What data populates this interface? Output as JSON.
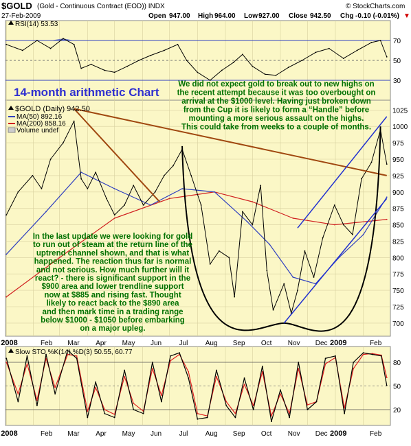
{
  "header": {
    "symbol": "$GOLD",
    "description": "(Gold - Continuous Contract (EOD)) INDX",
    "watermark": "© StockCharts.com",
    "date": "27-Feb-2009",
    "open_label": "Open",
    "open": "947.00",
    "high_label": "High",
    "high": "964.00",
    "low_label": "Low",
    "low": "927.00",
    "close_label": "Close",
    "close": "942.50",
    "chg_label": "Chg",
    "chg": "-0.10 (-0.01%)",
    "chg_arrow": "▼"
  },
  "annotations": {
    "chart_title": "14-month arithmetic Chart",
    "top_note": [
      "We did not expect gold to break out to new highs on",
      "the recent attempt because it was too overbought on",
      "arrival at the $1000 level. Having just broken down",
      "from the Cup it is likely to form a “Handle” before",
      "mounting a more serious assault on the highs.",
      "This could take from weeks to a couple of months."
    ],
    "left_note": [
      "In the last update we were looking for gold",
      "to run out of steam at the return line of the",
      "uptrend channel shown, and that is what",
      "happened. The reaction thus far is normal",
      "and not serious. How much further will it",
      "react? - there is significant support in the",
      "$900 area and lower trendline support",
      "now at $885 and rising fast. Thought",
      "likely to react back to the $890 area",
      "and then mark time in a trading range",
      "below $1000 - $1050 before embarking",
      "on a major upleg."
    ]
  },
  "colors": {
    "panel_bg": "#fbf7c6",
    "price": "#000000",
    "ma50": "#3040c0",
    "ma200": "#d02020",
    "trendline": "#a04810",
    "channel": "#2030d0",
    "cup": "#000000",
    "rsi": "#000000",
    "rsi_fill": "#4050c0",
    "sto_k": "#000000",
    "sto_d": "#e02020",
    "note_text": "#007000",
    "title_text": "#3030d0"
  },
  "chart_data": [
    {
      "type": "line",
      "panel": "rsi",
      "legend": "RSI(14) 53.53",
      "y_ticks": [
        "70",
        "50",
        "30"
      ],
      "ylim": [
        10,
        90
      ],
      "reference_lines": [
        70,
        50,
        30
      ],
      "grid": true,
      "series": [
        {
          "name": "RSI(14)",
          "x": [
            "2008-01-02",
            "2008-01-20",
            "2008-02-05",
            "2008-02-20",
            "2008-03-05",
            "2008-03-17",
            "2008-03-25",
            "2008-04-05",
            "2008-04-20",
            "2008-05-01",
            "2008-05-15",
            "2008-05-28",
            "2008-06-10",
            "2008-06-25",
            "2008-07-10",
            "2008-07-20",
            "2008-08-01",
            "2008-08-15",
            "2008-08-28",
            "2008-09-10",
            "2008-09-20",
            "2008-10-01",
            "2008-10-15",
            "2008-10-27",
            "2008-11-10",
            "2008-11-25",
            "2008-12-10",
            "2008-12-25",
            "2009-01-10",
            "2009-01-25",
            "2009-02-10",
            "2009-02-20",
            "2009-02-27"
          ],
          "values": [
            66,
            60,
            70,
            62,
            72,
            66,
            42,
            46,
            40,
            38,
            44,
            50,
            55,
            60,
            66,
            50,
            38,
            30,
            40,
            48,
            56,
            44,
            36,
            35,
            43,
            50,
            58,
            62,
            52,
            60,
            68,
            70,
            53.53
          ]
        }
      ]
    },
    {
      "type": "line",
      "panel": "price",
      "legend": [
        "$GOLD (Daily) 942.50",
        "MA(50) 892.16",
        "MA(200) 858.16",
        "Volume undef"
      ],
      "y_ticks": [
        "1025",
        "1000",
        "975",
        "950",
        "925",
        "900",
        "875",
        "850",
        "825",
        "800",
        "775",
        "750",
        "725",
        "700"
      ],
      "ylim": [
        680,
        1040
      ],
      "grid": true,
      "series": [
        {
          "name": "$GOLD (Daily)",
          "x": [
            "2008-01-02",
            "2008-01-15",
            "2008-01-31",
            "2008-02-10",
            "2008-02-20",
            "2008-03-05",
            "2008-03-17",
            "2008-03-25",
            "2008-04-01",
            "2008-04-10",
            "2008-04-22",
            "2008-05-01",
            "2008-05-12",
            "2008-05-22",
            "2008-06-02",
            "2008-06-15",
            "2008-06-25",
            "2008-07-05",
            "2008-07-15",
            "2008-07-25",
            "2008-08-05",
            "2008-08-15",
            "2008-08-25",
            "2008-09-05",
            "2008-09-11",
            "2008-09-20",
            "2008-10-01",
            "2008-10-10",
            "2008-10-17",
            "2008-10-24",
            "2008-11-05",
            "2008-11-13",
            "2008-11-20",
            "2008-11-28",
            "2008-12-08",
            "2008-12-18",
            "2008-12-31",
            "2009-01-10",
            "2009-01-20",
            "2009-01-30",
            "2009-02-10",
            "2009-02-20",
            "2009-02-27"
          ],
          "values": [
            865,
            900,
            925,
            905,
            950,
            975,
            1008,
            920,
            905,
            930,
            890,
            865,
            880,
            910,
            880,
            900,
            925,
            940,
            965,
            925,
            880,
            790,
            810,
            800,
            740,
            870,
            850,
            910,
            780,
            720,
            760,
            715,
            750,
            810,
            770,
            830,
            880,
            850,
            835,
            920,
            945,
            995,
            942.5
          ]
        },
        {
          "name": "MA(50)",
          "x": [
            "2008-01-02",
            "2008-02-15",
            "2008-03-25",
            "2008-05-01",
            "2008-06-10",
            "2008-07-15",
            "2008-08-20",
            "2008-09-25",
            "2008-10-20",
            "2008-11-15",
            "2008-12-10",
            "2009-01-05",
            "2009-02-01",
            "2009-02-27"
          ],
          "values": [
            805,
            870,
            930,
            905,
            880,
            905,
            900,
            855,
            820,
            770,
            760,
            800,
            835,
            892.16
          ]
        },
        {
          "name": "MA(200)",
          "x": [
            "2008-01-02",
            "2008-03-01",
            "2008-05-01",
            "2008-07-01",
            "2008-08-20",
            "2008-10-01",
            "2008-11-15",
            "2008-12-31",
            "2009-02-27"
          ],
          "values": [
            740,
            800,
            860,
            890,
            900,
            885,
            860,
            850,
            858.16
          ]
        }
      ],
      "overlays": [
        {
          "name": "Downtrend line",
          "from": [
            "2008-03-17",
            1027
          ],
          "to": [
            "2009-02-27",
            925
          ]
        },
        {
          "name": "Fan line",
          "from": [
            "2008-03-17",
            1027
          ],
          "to": [
            "2008-06-20",
            885
          ]
        },
        {
          "name": "Cup",
          "from": [
            "2008-07-15",
            970
          ],
          "bottom": [
            "2008-11-05",
            700
          ],
          "to": [
            "2009-02-20",
            1000
          ]
        },
        {
          "name": "Channel upper",
          "from": [
            "2008-11-20",
            845
          ],
          "to": [
            "2009-02-27",
            1015
          ]
        },
        {
          "name": "Channel lower",
          "from": [
            "2008-11-05",
            700
          ],
          "to": [
            "2009-02-27",
            890
          ]
        }
      ],
      "x_ticks": [
        "2008",
        "Feb",
        "Mar",
        "Apr",
        "May",
        "Jun",
        "Jul",
        "Aug",
        "Sep",
        "Oct",
        "Nov",
        "Dec",
        "2009",
        "Feb"
      ]
    },
    {
      "type": "line",
      "panel": "stochastic",
      "legend": "Slow STO %K(14) %D(3) 50.55, 60.77",
      "y_ticks": [
        "80",
        "50",
        "20"
      ],
      "ylim": [
        0,
        100
      ],
      "reference_lines": [
        80,
        50,
        20
      ],
      "grid": true,
      "series": [
        {
          "name": "%K(14)",
          "x": [
            "2008-01-02",
            "2008-01-15",
            "2008-01-25",
            "2008-02-05",
            "2008-02-15",
            "2008-02-25",
            "2008-03-10",
            "2008-03-20",
            "2008-04-01",
            "2008-04-10",
            "2008-04-20",
            "2008-05-01",
            "2008-05-12",
            "2008-05-22",
            "2008-06-02",
            "2008-06-12",
            "2008-06-22",
            "2008-07-02",
            "2008-07-12",
            "2008-07-22",
            "2008-08-01",
            "2008-08-12",
            "2008-08-22",
            "2008-09-02",
            "2008-09-12",
            "2008-09-22",
            "2008-10-02",
            "2008-10-12",
            "2008-10-22",
            "2008-11-01",
            "2008-11-11",
            "2008-11-21",
            "2008-12-01",
            "2008-12-11",
            "2008-12-21",
            "2009-01-01",
            "2009-01-11",
            "2009-01-21",
            "2009-02-01",
            "2009-02-11",
            "2009-02-21",
            "2009-02-27"
          ],
          "values": [
            85,
            30,
            88,
            25,
            90,
            40,
            95,
            85,
            10,
            55,
            15,
            10,
            70,
            20,
            15,
            80,
            30,
            88,
            92,
            60,
            8,
            10,
            70,
            25,
            10,
            60,
            20,
            75,
            5,
            45,
            10,
            80,
            20,
            30,
            85,
            88,
            15,
            80,
            92,
            90,
            88,
            50.55
          ]
        },
        {
          "name": "%D(3)",
          "x": [
            "2008-01-02",
            "2008-01-15",
            "2008-01-25",
            "2008-02-05",
            "2008-02-15",
            "2008-02-25",
            "2008-03-10",
            "2008-03-20",
            "2008-04-01",
            "2008-04-10",
            "2008-04-20",
            "2008-05-01",
            "2008-05-12",
            "2008-05-22",
            "2008-06-02",
            "2008-06-12",
            "2008-06-22",
            "2008-07-02",
            "2008-07-12",
            "2008-07-22",
            "2008-08-01",
            "2008-08-12",
            "2008-08-22",
            "2008-09-02",
            "2008-09-12",
            "2008-09-22",
            "2008-10-02",
            "2008-10-12",
            "2008-10-22",
            "2008-11-01",
            "2008-11-11",
            "2008-11-21",
            "2008-12-01",
            "2008-12-11",
            "2008-12-21",
            "2009-01-01",
            "2009-01-11",
            "2009-01-21",
            "2009-02-01",
            "2009-02-11",
            "2009-02-21",
            "2009-02-27"
          ],
          "values": [
            80,
            40,
            78,
            32,
            85,
            48,
            90,
            88,
            18,
            48,
            20,
            14,
            62,
            28,
            18,
            72,
            38,
            82,
            90,
            68,
            15,
            12,
            62,
            30,
            15,
            52,
            25,
            68,
            12,
            40,
            15,
            72,
            26,
            30,
            78,
            86,
            22,
            72,
            90,
            91,
            89,
            60.77
          ]
        }
      ],
      "x_ticks": [
        "2008",
        "Feb",
        "Mar",
        "Apr",
        "May",
        "Jun",
        "Jul",
        "Aug",
        "Sep",
        "Oct",
        "Nov",
        "Dec",
        "2009",
        "Feb"
      ]
    }
  ]
}
